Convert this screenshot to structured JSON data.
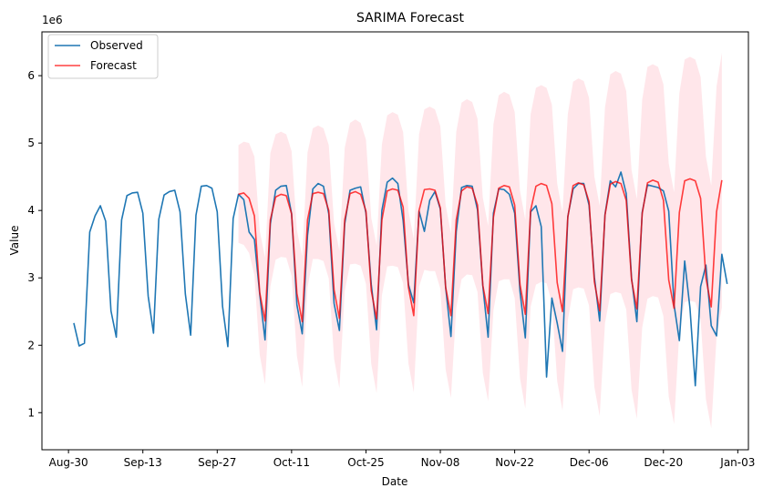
{
  "chart_data": {
    "type": "line",
    "title": "SARIMA Forecast",
    "xlabel": "Date",
    "ylabel": "Value",
    "y_multiplier_label": "1e6",
    "y_multiplier": 1000000,
    "x_start_date": "2023-08-31",
    "x_step_days": 1,
    "x_ticks": [
      {
        "date": "2023-08-30",
        "label": "Aug-30"
      },
      {
        "date": "2023-09-13",
        "label": "Sep-13"
      },
      {
        "date": "2023-09-27",
        "label": "Sep-27"
      },
      {
        "date": "2023-10-11",
        "label": "Oct-11"
      },
      {
        "date": "2023-10-25",
        "label": "Oct-25"
      },
      {
        "date": "2023-11-08",
        "label": "Nov-08"
      },
      {
        "date": "2023-11-22",
        "label": "Nov-22"
      },
      {
        "date": "2023-12-06",
        "label": "Dec-06"
      },
      {
        "date": "2023-12-20",
        "label": "Dec-20"
      },
      {
        "date": "2024-01-03",
        "label": "Jan-03"
      }
    ],
    "y_ticks": [
      1,
      2,
      3,
      4,
      5,
      6
    ],
    "xlim": [
      "2023-08-25",
      "2024-01-05"
    ],
    "ylim": [
      0.45,
      6.65
    ],
    "grid": false,
    "legend_position": "top-left",
    "series": [
      {
        "name": "Observed",
        "color": "#1f77b4",
        "x_start_date": "2023-08-31",
        "values": [
          2.33,
          1.99,
          2.03,
          3.68,
          3.92,
          4.07,
          3.84,
          2.51,
          2.12,
          3.86,
          4.22,
          4.26,
          4.27,
          3.96,
          2.73,
          2.18,
          3.87,
          4.23,
          4.28,
          4.3,
          3.98,
          2.76,
          2.15,
          3.93,
          4.36,
          4.37,
          4.33,
          3.98,
          2.58,
          1.98,
          3.88,
          4.24,
          4.16,
          3.68,
          3.57,
          2.76,
          2.08,
          3.8,
          4.3,
          4.36,
          4.37,
          3.95,
          2.6,
          2.17,
          3.63,
          4.32,
          4.4,
          4.36,
          3.95,
          2.62,
          2.22,
          3.8,
          4.3,
          4.33,
          4.35,
          3.96,
          2.9,
          2.23,
          4.0,
          4.42,
          4.48,
          4.4,
          3.85,
          2.9,
          2.63,
          3.99,
          3.69,
          4.15,
          4.28,
          4.02,
          2.86,
          2.13,
          3.69,
          4.34,
          4.37,
          4.36,
          4.01,
          2.88,
          2.12,
          3.96,
          4.32,
          4.31,
          4.24,
          3.96,
          2.8,
          2.11,
          3.98,
          4.07,
          3.76,
          1.53,
          2.7,
          2.33,
          1.91,
          3.91,
          4.32,
          4.4,
          4.4,
          4.08,
          3.01,
          2.36,
          3.94,
          4.44,
          4.35,
          4.57,
          4.25,
          3.0,
          2.35,
          3.97,
          4.38,
          4.36,
          4.34,
          4.29,
          3.99,
          2.6,
          2.07,
          3.25,
          2.55,
          1.4,
          2.87,
          3.19,
          2.29,
          2.14,
          3.35,
          2.91
        ]
      },
      {
        "name": "Forecast",
        "color": "#ff0000",
        "x_start_date": "2023-10-01",
        "values": [
          4.24,
          4.26,
          4.18,
          3.92,
          2.78,
          2.36,
          3.86,
          4.2,
          4.24,
          4.22,
          3.95,
          2.77,
          2.35,
          3.86,
          4.25,
          4.27,
          4.25,
          4.0,
          2.82,
          2.4,
          3.86,
          4.25,
          4.28,
          4.24,
          3.99,
          2.81,
          2.39,
          3.86,
          4.29,
          4.32,
          4.3,
          4.05,
          2.86,
          2.44,
          4.0,
          4.31,
          4.32,
          4.3,
          4.04,
          2.86,
          2.44,
          3.86,
          4.29,
          4.35,
          4.33,
          4.08,
          2.89,
          2.47,
          3.9,
          4.33,
          4.37,
          4.35,
          4.08,
          2.9,
          2.46,
          4.0,
          4.36,
          4.4,
          4.37,
          4.1,
          2.93,
          2.5,
          3.9,
          4.37,
          4.41,
          4.38,
          4.13,
          2.94,
          2.51,
          3.93,
          4.39,
          4.43,
          4.4,
          4.15,
          2.97,
          2.54,
          3.95,
          4.41,
          4.45,
          4.42,
          4.15,
          2.97,
          2.55,
          3.97,
          4.44,
          4.47,
          4.44,
          4.18,
          3.0,
          2.57,
          3.98,
          4.45
        ]
      }
    ],
    "confidence_band": {
      "color": "#ffc0cb",
      "opacity": 0.4,
      "x_start_date": "2023-10-01",
      "upper": [
        4.97,
        5.02,
        5.0,
        4.8,
        3.7,
        3.3,
        4.85,
        5.13,
        5.17,
        5.13,
        4.88,
        3.71,
        3.32,
        4.86,
        5.22,
        5.26,
        5.22,
        4.97,
        3.81,
        3.4,
        4.93,
        5.3,
        5.35,
        5.3,
        5.05,
        3.89,
        3.48,
        4.98,
        5.41,
        5.46,
        5.42,
        5.16,
        3.99,
        3.58,
        5.13,
        5.5,
        5.54,
        5.5,
        5.25,
        4.08,
        3.66,
        5.17,
        5.6,
        5.65,
        5.61,
        5.36,
        4.19,
        3.77,
        5.28,
        5.71,
        5.76,
        5.72,
        5.46,
        4.29,
        3.86,
        5.43,
        5.82,
        5.86,
        5.82,
        5.57,
        4.4,
        3.97,
        5.43,
        5.91,
        5.96,
        5.92,
        5.67,
        4.5,
        4.07,
        5.53,
        6.02,
        6.07,
        6.03,
        5.77,
        4.6,
        4.17,
        5.64,
        6.13,
        6.17,
        6.13,
        5.87,
        4.7,
        4.27,
        5.74,
        6.24,
        6.28,
        6.24,
        5.98,
        4.8,
        4.37,
        5.84,
        6.34
      ],
      "lower": [
        3.52,
        3.49,
        3.37,
        3.04,
        1.86,
        1.42,
        2.87,
        3.27,
        3.31,
        3.3,
        3.03,
        1.84,
        1.38,
        2.86,
        3.28,
        3.28,
        3.25,
        2.99,
        1.8,
        1.36,
        2.8,
        3.2,
        3.21,
        3.18,
        2.91,
        1.72,
        1.29,
        2.74,
        3.17,
        3.18,
        3.16,
        2.92,
        1.73,
        1.3,
        2.87,
        3.12,
        3.1,
        3.1,
        2.84,
        1.64,
        1.22,
        2.55,
        2.98,
        3.05,
        3.04,
        2.79,
        1.59,
        1.17,
        2.52,
        2.95,
        2.98,
        2.98,
        2.7,
        1.51,
        1.06,
        2.57,
        2.9,
        2.94,
        2.92,
        2.63,
        1.47,
        1.03,
        2.37,
        2.83,
        2.86,
        2.84,
        2.59,
        1.38,
        0.95,
        2.33,
        2.76,
        2.79,
        2.77,
        2.53,
        1.34,
        0.91,
        2.26,
        2.69,
        2.73,
        2.71,
        2.43,
        1.24,
        0.83,
        2.2,
        2.64,
        2.66,
        2.64,
        2.38,
        1.2,
        0.77,
        2.12,
        2.56
      ]
    }
  }
}
